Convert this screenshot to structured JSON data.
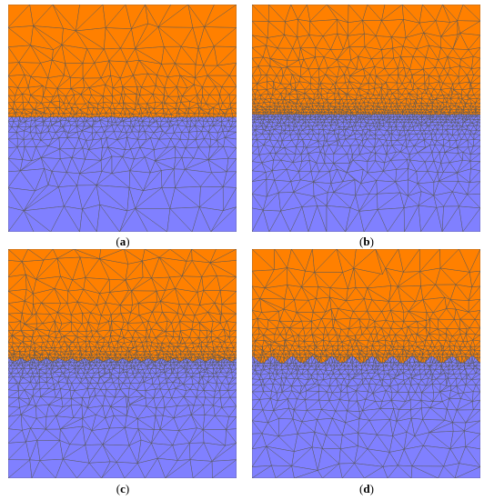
{
  "colors": {
    "top_region": "#ff8000",
    "bottom_region": "#8080ff",
    "mesh_line": "#555555"
  },
  "panels": [
    {
      "label": "a"
    },
    {
      "label": "b"
    },
    {
      "label": "c"
    },
    {
      "label": "d"
    }
  ]
}
